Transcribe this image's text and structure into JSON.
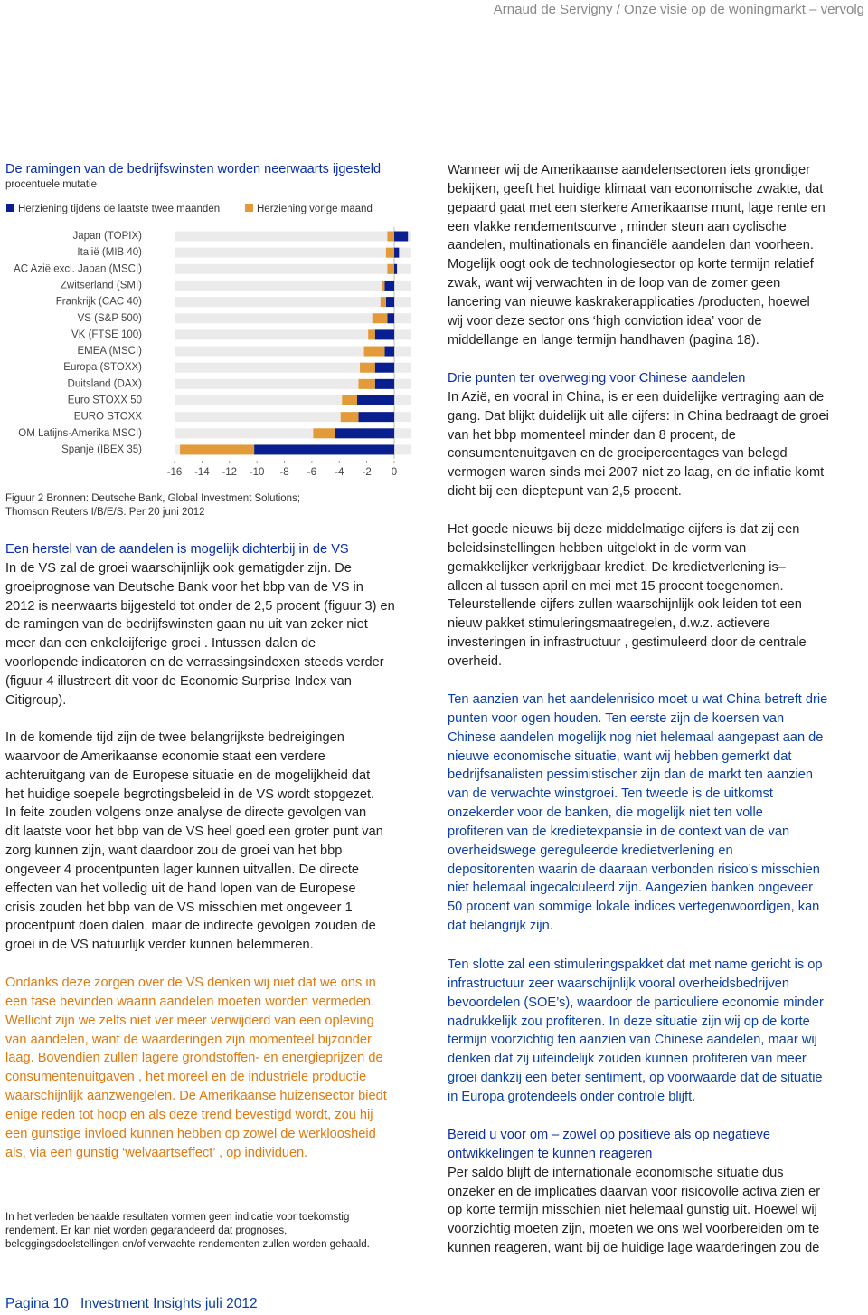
{
  "header": {
    "title": "Arnaud de Servigny / Onze visie op de woningmarkt – vervolg"
  },
  "chart_data": {
    "type": "bar",
    "orientation": "horizontal",
    "stacked": true,
    "title": "De ramingen van de bedrijfswinsten worden neerwaarts ijgesteld",
    "subtitle": "procentuele mutatie",
    "categories": [
      "Japan (TOPIX)",
      "Italië (MIB 40)",
      "AC Azië excl. Japan (MSCI)",
      "Zwitserland (SMI)",
      "Frankrijk (CAC 40)",
      "VS (S&P 500)",
      "VK (FTSE 100)",
      "EMEA (MSCI)",
      "Europa (STOXX)",
      "Duitsland (DAX)",
      "Euro STOXX 50",
      "EURO STOXX",
      "OM Latijns-Amerika MSCI)",
      "Spanje (IBEX 35)"
    ],
    "series": [
      {
        "name": "Herziening tijdens de laatste twee maanden",
        "color": "#0a1f8f",
        "values": [
          1.0,
          0.35,
          0.2,
          -0.7,
          -0.6,
          -0.5,
          -1.4,
          -0.7,
          -1.4,
          -1.4,
          -2.7,
          -2.6,
          -4.3,
          -10.2
        ]
      },
      {
        "name": "Herziening vorige maand",
        "color": "#e39b3a",
        "values": [
          -0.5,
          -0.6,
          -0.5,
          -0.2,
          -0.4,
          -1.1,
          -0.5,
          -1.5,
          -1.1,
          -1.2,
          -1.1,
          -1.3,
          -1.6,
          -5.4
        ]
      }
    ],
    "xlim": [
      -16,
      1.25
    ],
    "xticks": [
      -16,
      -14,
      -12,
      -10,
      -8,
      -6,
      -4,
      -2,
      0
    ],
    "caption": [
      "Figuur 2 Bronnen: Deutsche Bank, Global Investment Solutions;",
      "Thomson Reuters I/B/E/S. Per 20 juni 2012"
    ]
  },
  "left": [
    {
      "heading": [
        "Een herstel van de aandelen is mogelijk dichterbij in de VS"
      ],
      "lines": [
        "In de VS zal de groei waarschijnlijk ook gematigder zijn. De",
        "groeiprognose van Deutsche Bank voor het bbp van de VS in",
        "2012 is neerwaarts bijgesteld tot onder de 2,5 procent (figuur 3) en",
        "de ramingen van de bedrijfswinsten gaan nu uit van zeker niet",
        "meer dan een enkelcijferige groei . Intussen dalen de",
        "voorlopende indicatoren en de verrassingsindexen steeds verder",
        "(figuur 4 illustreert dit voor de Economic Surprise Index van",
        "Citigroup)."
      ]
    },
    {
      "lines": [
        "In de komende tijd zijn de twee belangrijkste bedreigingen",
        "waarvoor de Amerikaanse economie staat een verdere",
        "achteruitgang van de Europese situatie en de mogelijkheid dat",
        "het huidige soepele begrotingsbeleid in de VS wordt stopgezet.",
        "In feite zouden volgens onze analyse de directe gevolgen van",
        "dit laatste voor het bbp van de VS heel goed een groter punt van",
        "zorg kunnen zijn, want daardoor zou de groei van het bbp",
        "ongeveer 4 procentpunten lager kunnen uitvallen. De directe",
        "effecten van het volledig uit de hand lopen van de Europese",
        "crisis zouden het bbp van de VS misschien met ongeveer 1",
        "procentpunt doen dalen, maar de indirecte gevolgen zouden de",
        "groei in de VS natuurlijk verder kunnen belemmeren."
      ]
    },
    {
      "lines": [
        "Ondanks deze zorgen over de VS denken wij niet dat we ons in",
        "een fase bevinden waarin aandelen moeten worden vermeden.",
        "Wellicht zijn we zelfs niet ver meer verwijderd van een opleving",
        "van aandelen, want de waarderingen zijn momenteel bijzonder",
        "laag. Bovendien zullen lagere grondstoffen- en energieprijzen de",
        "consumentenuitgaven , het moreel en de industriële productie",
        "waarschijnlijk aanzwengelen. De Amerikaanse huizensector biedt",
        "enige reden tot hoop en als deze trend bevestigd wordt, zou hij",
        "een gunstige invloed kunnen hebben op zowel de werkloosheid",
        "als, via een gunstig ‘welvaartseffect’ , op individuen."
      ]
    }
  ],
  "disclaimer": [
    "In het verleden behaalde resultaten vormen geen indicatie voor toekomstig",
    "rendement. Er kan niet worden gegarandeerd dat prognoses,",
    "beleggingsdoelstellingen en/of verwachte rendementen zullen worden gehaald."
  ],
  "right": [
    {
      "lines": [
        "Wanneer wij de Amerikaanse aandelensectoren iets grondiger",
        "bekijken, geeft het huidige klimaat van economische zwakte, dat",
        "gepaard gaat met een sterkere Amerikaanse munt, lage rente en",
        "een vlakke rendementscurve , minder steun aan cyclische",
        "aandelen, multinationals en financiële aandelen dan voorheen.",
        "Mogelijk oogt ook de technologiesector op korte termijn relatief",
        "zwak, want wij verwachten in de loop van de zomer geen",
        "lancering van nieuwe kaskrakerapplicaties /producten, hoewel",
        "wij voor deze sector ons ‘high conviction idea’ voor de",
        "middellange en lange termijn handhaven (pagina 18)."
      ]
    },
    {
      "heading": [
        "Drie punten ter overweging voor Chinese aandelen"
      ],
      "lines": [
        "In Azië, en vooral in China, is er een duidelijke vertraging aan de",
        "gang. Dat blijkt duidelijk uit alle cijfers: in China bedraagt de groei",
        "van het bbp momenteel minder dan 8 procent, de",
        "consumentenuitgaven en de groeipercentages van belegd",
        "vermogen waren sinds mei 2007 niet zo laag, en de inflatie komt",
        "dicht bij een dieptepunt van 2,5 procent."
      ]
    },
    {
      "lines": [
        " Het goede nieuws bij deze middelmatige cijfers is dat zij een",
        "beleidsinstellingen hebben uitgelokt in de vorm van",
        "gemakkelijker verkrijgbaar krediet. De kredietverlening is–",
        "alleen al tussen april en mei met 15 procent toegenomen.",
        "Teleurstellende cijfers zullen waarschijnlijk ook leiden tot een",
        "nieuw pakket stimuleringsmaatregelen, d.w.z. actievere",
        "investeringen in infrastructuur , gestimuleerd door de centrale",
        "overheid."
      ]
    },
    {
      "lines": [
        "Ten aanzien van het aandelenrisico moet u wat China betreft drie",
        "punten voor ogen houden. Ten eerste zijn de koersen van",
        "Chinese aandelen mogelijk nog niet helemaal aangepast aan de",
        "nieuwe economische situatie, want wij hebben gemerkt dat",
        "bedrijfsanalisten pessimistischer zijn dan de markt ten aanzien",
        "van de verwachte winstgroei. Ten tweede is de uitkomst",
        "onzekerder voor de banken, die mogelijk niet ten volle",
        "profiteren van de kredietexpansie in de context van de van",
        "overheidswege gereguleerde kredietverlening en",
        "depositorenten waarin de daaraan verbonden risico’s misschien",
        "niet helemaal ingecalculeerd zijn. Aangezien banken ongeveer",
        "50 procent van sommige lokale indices vertegenwoordigen, kan",
        "dat belangrijk zijn."
      ]
    },
    {
      "lines": [
        "Ten slotte zal een stimuleringspakket dat met name gericht is op",
        "infrastructuur zeer waarschijnlijk vooral overheidsbedrijven",
        "bevoordelen (SOE’s), waardoor de particuliere economie minder",
        "nadrukkelijk zou profiteren. In deze situatie zijn wij op de korte",
        "termijn voorzichtig ten aanzien van Chinese aandelen, maar wij",
        "denken dat zij uiteindelijk zouden kunnen profiteren van meer",
        "groei dankzij een beter sentiment, op voorwaarde dat de situatie",
        "in Europa grotendeels onder controle blijft."
      ]
    },
    {
      "heading": [
        "Bereid u voor om – zowel op positieve als op negatieve",
        "ontwikkelingen te kunnen reageren"
      ],
      "lines": [
        " Per saldo blijft de internationale economische situatie dus",
        "onzeker en de implicaties daarvan voor risicovolle activa zien er",
        "op korte termijn misschien niet helemaal gunstig uit. Hoewel wij",
        " voorzichtig moeten zijn, moeten we ons wel voorbereiden om te",
        "kunnen reageren, want bij de huidige lage waarderingen zou de"
      ]
    }
  ],
  "footer": {
    "page": "Pagina 10",
    "publication": "Investment Insights juli 2012"
  }
}
